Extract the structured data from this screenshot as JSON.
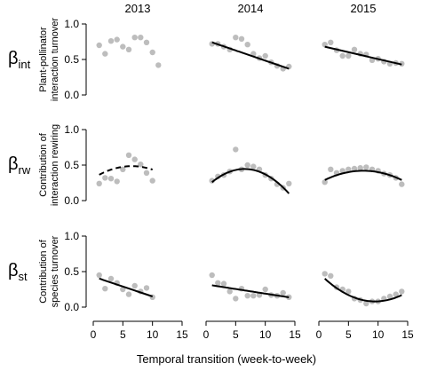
{
  "figure": {
    "xlabel": "Temporal transition (week-to-week)"
  },
  "colors": {
    "points": "#bdbdbd",
    "line": "#000000"
  },
  "chart_data": {
    "type": "scatter",
    "columns": [
      "2013",
      "2014",
      "2015"
    ],
    "xlim": [
      0,
      15
    ],
    "xticks": [
      0,
      5,
      10,
      15
    ],
    "ylim": [
      0,
      1
    ],
    "yticks": [
      "0.0",
      "0.5",
      "1.0"
    ],
    "rows": [
      {
        "symbol": "β",
        "subscript": "int",
        "ylabel_line1": "Plant-pollinator",
        "ylabel_line2": "interaction turnover",
        "panels": [
          {
            "points": [
              [
                1,
                0.7
              ],
              [
                2,
                0.58
              ],
              [
                3,
                0.76
              ],
              [
                4,
                0.78
              ],
              [
                5,
                0.68
              ],
              [
                6,
                0.64
              ],
              [
                7,
                0.81
              ],
              [
                8,
                0.81
              ],
              [
                9,
                0.74
              ],
              [
                10,
                0.6
              ],
              [
                11,
                0.42
              ]
            ],
            "fit": null
          },
          {
            "points": [
              [
                1,
                0.72
              ],
              [
                2,
                0.72
              ],
              [
                3,
                0.68
              ],
              [
                4,
                0.64
              ],
              [
                5,
                0.81
              ],
              [
                6,
                0.79
              ],
              [
                7,
                0.71
              ],
              [
                8,
                0.58
              ],
              [
                9,
                0.52
              ],
              [
                10,
                0.55
              ],
              [
                11,
                0.46
              ],
              [
                12,
                0.41
              ],
              [
                13,
                0.37
              ],
              [
                14,
                0.4
              ]
            ],
            "fit": {
              "kind": "linear",
              "a": 0.77,
              "b": -0.0286,
              "x0": 1,
              "x1": 14,
              "dashed": false
            }
          },
          {
            "points": [
              [
                1,
                0.71
              ],
              [
                2,
                0.74
              ],
              [
                3,
                0.63
              ],
              [
                4,
                0.55
              ],
              [
                5,
                0.55
              ],
              [
                6,
                0.64
              ],
              [
                7,
                0.58
              ],
              [
                8,
                0.57
              ],
              [
                9,
                0.49
              ],
              [
                10,
                0.51
              ],
              [
                11,
                0.47
              ],
              [
                12,
                0.44
              ],
              [
                13,
                0.45
              ],
              [
                14,
                0.44
              ]
            ],
            "fit": {
              "kind": "linear",
              "a": 0.7,
              "b": -0.0194,
              "x0": 1,
              "x1": 14,
              "dashed": false
            }
          }
        ]
      },
      {
        "symbol": "β",
        "subscript": "rw",
        "ylabel_line1": "Contribution of",
        "ylabel_line2": "interaction rewiring",
        "panels": [
          {
            "points": [
              [
                1,
                0.24
              ],
              [
                2,
                0.32
              ],
              [
                3,
                0.31
              ],
              [
                4,
                0.27
              ],
              [
                5,
                0.44
              ],
              [
                6,
                0.64
              ],
              [
                7,
                0.58
              ],
              [
                8,
                0.51
              ],
              [
                9,
                0.39
              ],
              [
                10,
                0.28
              ]
            ],
            "fit": {
              "kind": "quad",
              "a": -0.004,
              "h": 6.5,
              "k": 0.485,
              "x0": 1,
              "x1": 10,
              "dashed": true
            }
          },
          {
            "points": [
              [
                1,
                0.28
              ],
              [
                2,
                0.34
              ],
              [
                3,
                0.36
              ],
              [
                4,
                0.41
              ],
              [
                5,
                0.72
              ],
              [
                6,
                0.44
              ],
              [
                7,
                0.5
              ],
              [
                8,
                0.48
              ],
              [
                9,
                0.44
              ],
              [
                10,
                0.36
              ],
              [
                11,
                0.31
              ],
              [
                12,
                0.23
              ],
              [
                13,
                0.18
              ],
              [
                14,
                0.24
              ]
            ],
            "fit": {
              "kind": "quad",
              "a": -0.00614,
              "h": 6.5,
              "k": 0.445,
              "x0": 1,
              "x1": 14,
              "dashed": false
            }
          },
          {
            "points": [
              [
                1,
                0.26
              ],
              [
                2,
                0.44
              ],
              [
                3,
                0.39
              ],
              [
                4,
                0.42
              ],
              [
                5,
                0.44
              ],
              [
                6,
                0.45
              ],
              [
                7,
                0.46
              ],
              [
                8,
                0.47
              ],
              [
                9,
                0.44
              ],
              [
                10,
                0.42
              ],
              [
                11,
                0.38
              ],
              [
                12,
                0.36
              ],
              [
                13,
                0.32
              ],
              [
                14,
                0.23
              ]
            ],
            "fit": {
              "kind": "quad",
              "a": -0.00307,
              "h": 7.5,
              "k": 0.42,
              "x0": 1,
              "x1": 14,
              "dashed": false
            }
          }
        ]
      },
      {
        "symbol": "β",
        "subscript": "st",
        "ylabel_line1": "Contribution of",
        "ylabel_line2": "species turnover",
        "panels": [
          {
            "points": [
              [
                1,
                0.45
              ],
              [
                2,
                0.26
              ],
              [
                3,
                0.4
              ],
              [
                4,
                0.34
              ],
              [
                5,
                0.25
              ],
              [
                6,
                0.18
              ],
              [
                7,
                0.3
              ],
              [
                8,
                0.22
              ],
              [
                9,
                0.27
              ],
              [
                10,
                0.14
              ]
            ],
            "fit": {
              "kind": "linear",
              "a": 0.43,
              "b": -0.028,
              "x0": 1,
              "x1": 10,
              "dashed": false
            }
          },
          {
            "points": [
              [
                1,
                0.45
              ],
              [
                2,
                0.34
              ],
              [
                3,
                0.33
              ],
              [
                4,
                0.22
              ],
              [
                5,
                0.12
              ],
              [
                6,
                0.26
              ],
              [
                7,
                0.16
              ],
              [
                8,
                0.16
              ],
              [
                9,
                0.17
              ],
              [
                10,
                0.25
              ],
              [
                11,
                0.17
              ],
              [
                12,
                0.16
              ],
              [
                13,
                0.2
              ],
              [
                14,
                0.14
              ]
            ],
            "fit": {
              "kind": "linear",
              "a": 0.32,
              "b": -0.013,
              "x0": 1,
              "x1": 14,
              "dashed": false
            }
          },
          {
            "points": [
              [
                1,
                0.47
              ],
              [
                2,
                0.44
              ],
              [
                3,
                0.28
              ],
              [
                4,
                0.25
              ],
              [
                5,
                0.22
              ],
              [
                6,
                0.12
              ],
              [
                7,
                0.1
              ],
              [
                8,
                0.05
              ],
              [
                9,
                0.08
              ],
              [
                10,
                0.08
              ],
              [
                11,
                0.12
              ],
              [
                12,
                0.15
              ],
              [
                13,
                0.18
              ],
              [
                14,
                0.22
              ]
            ],
            "fit": {
              "kind": "quad",
              "a": 0.00444,
              "h": 9.5,
              "k": 0.08,
              "x0": 1,
              "x1": 14,
              "dashed": false
            }
          }
        ]
      }
    ]
  }
}
